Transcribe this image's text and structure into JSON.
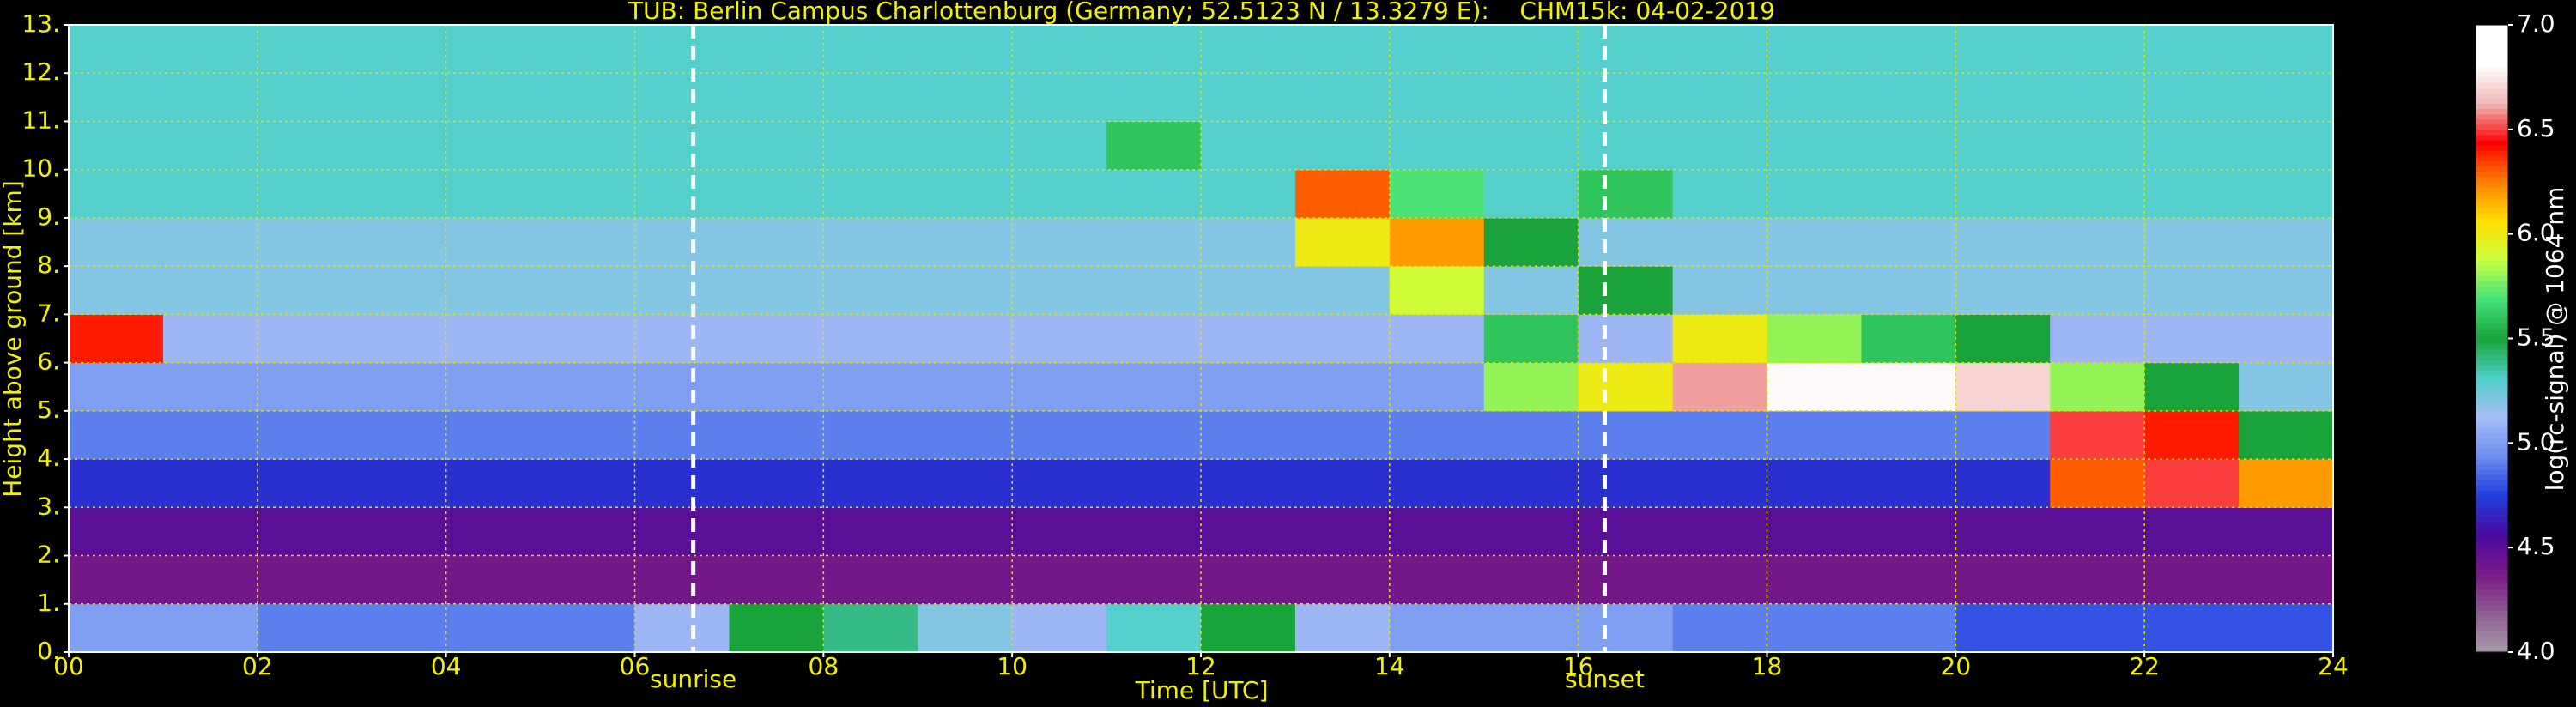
{
  "chart_data": {
    "type": "heatmap",
    "title": "TUB: Berlin Campus Charlottenburg (Germany; 52.5123 N / 13.3279 E):    CHM15k: 04-02-2019",
    "x_label": "Time [UTC]",
    "y_label": "Height above ground [km]",
    "colorbar_label": "log(rc-signal) @ 1064 nm",
    "xlim": [
      0,
      24
    ],
    "ylim": [
      0,
      13
    ],
    "zlim": [
      4,
      7
    ],
    "xticks": [
      {
        "value": 0,
        "label": "00"
      },
      {
        "value": 2,
        "label": "02"
      },
      {
        "value": 4,
        "label": "04"
      },
      {
        "value": 6,
        "label": "06"
      },
      {
        "value": 8,
        "label": "08"
      },
      {
        "value": 10,
        "label": "10"
      },
      {
        "value": 12,
        "label": "12"
      },
      {
        "value": 14,
        "label": "14"
      },
      {
        "value": 16,
        "label": "16"
      },
      {
        "value": 18,
        "label": "18"
      },
      {
        "value": 20,
        "label": "20"
      },
      {
        "value": 22,
        "label": "22"
      },
      {
        "value": 24,
        "label": "24"
      }
    ],
    "yticks": [
      {
        "value": 0,
        "label": "0."
      },
      {
        "value": 1,
        "label": "1."
      },
      {
        "value": 2,
        "label": "2."
      },
      {
        "value": 3,
        "label": "3."
      },
      {
        "value": 4,
        "label": "4."
      },
      {
        "value": 5,
        "label": "5."
      },
      {
        "value": 6,
        "label": "6."
      },
      {
        "value": 7,
        "label": "7."
      },
      {
        "value": 8,
        "label": "8."
      },
      {
        "value": 9,
        "label": "9."
      },
      {
        "value": 10,
        "label": "10."
      },
      {
        "value": 11,
        "label": "11."
      },
      {
        "value": 12,
        "label": "12."
      },
      {
        "value": 13,
        "label": "13."
      }
    ],
    "zticks": [
      {
        "value": 4,
        "label": "4.0"
      },
      {
        "value": 4.5,
        "label": "4.5"
      },
      {
        "value": 5,
        "label": "5.0"
      },
      {
        "value": 5.5,
        "label": "5.5"
      },
      {
        "value": 6,
        "label": "6.0"
      },
      {
        "value": 6.5,
        "label": "6.5"
      },
      {
        "value": 7,
        "label": "7.0"
      }
    ],
    "grid": true,
    "colormap": [
      "#a89aa8",
      "#8e5d93",
      "#7a1a86",
      "#4a0aa0",
      "#1f3ee0",
      "#6d8ef0",
      "#a6bdf5",
      "#4fd0c8",
      "#1aa33a",
      "#44e07a",
      "#c8ff40",
      "#ffe000",
      "#ff8000",
      "#ff0000",
      "#f0b8b8",
      "#ffffff",
      "#ffffff"
    ],
    "x_edges": [
      0,
      1,
      2,
      3,
      4,
      5,
      6,
      7,
      8,
      9,
      10,
      11,
      12,
      13,
      14,
      15,
      16,
      17,
      18,
      19,
      20,
      21,
      22,
      23,
      24
    ],
    "y_edges": [
      0,
      1,
      2,
      3,
      4,
      5,
      6,
      7,
      8,
      9,
      10,
      11,
      12,
      13
    ],
    "z": [
      [
        5.0,
        5.0,
        4.9,
        4.9,
        4.9,
        4.9,
        5.1,
        5.5,
        5.4,
        5.2,
        5.1,
        5.3,
        5.5,
        5.1,
        5.0,
        5.0,
        5.0,
        4.9,
        4.9,
        4.9,
        4.8,
        4.8,
        4.8,
        4.8
      ],
      [
        4.4,
        4.4,
        4.4,
        4.4,
        4.4,
        4.4,
        4.4,
        4.4,
        4.4,
        4.4,
        4.4,
        4.4,
        4.4,
        4.4,
        4.4,
        4.4,
        4.4,
        4.4,
        4.4,
        4.4,
        4.4,
        4.4,
        4.4,
        4.4
      ],
      [
        4.5,
        4.5,
        4.5,
        4.5,
        4.5,
        4.5,
        4.5,
        4.5,
        4.5,
        4.5,
        4.5,
        4.5,
        4.5,
        4.5,
        4.5,
        4.5,
        4.5,
        4.5,
        4.5,
        4.5,
        4.5,
        4.5,
        4.5,
        4.5
      ],
      [
        4.7,
        4.7,
        4.7,
        4.7,
        4.7,
        4.7,
        4.7,
        4.7,
        4.7,
        4.7,
        4.7,
        4.7,
        4.7,
        4.7,
        4.7,
        4.7,
        4.7,
        4.7,
        4.7,
        4.7,
        4.7,
        6.3,
        6.5,
        6.2
      ],
      [
        4.9,
        4.9,
        4.9,
        4.9,
        4.9,
        4.9,
        4.9,
        4.9,
        4.9,
        4.9,
        4.9,
        4.9,
        4.9,
        4.9,
        4.9,
        4.9,
        4.9,
        4.9,
        4.9,
        4.9,
        4.9,
        6.5,
        6.4,
        5.5
      ],
      [
        5.0,
        5.0,
        5.0,
        5.0,
        5.0,
        5.0,
        5.0,
        5.0,
        5.0,
        5.0,
        5.0,
        5.0,
        5.0,
        5.0,
        5.0,
        5.8,
        6.0,
        6.6,
        6.8,
        6.8,
        6.7,
        5.8,
        5.5,
        5.2
      ],
      [
        6.4,
        5.1,
        5.1,
        5.1,
        5.1,
        5.1,
        5.1,
        5.1,
        5.1,
        5.1,
        5.1,
        5.1,
        5.1,
        5.1,
        5.1,
        5.6,
        5.1,
        6.0,
        5.8,
        5.6,
        5.5,
        5.1,
        5.1,
        5.1
      ],
      [
        5.2,
        5.2,
        5.2,
        5.2,
        5.2,
        5.2,
        5.2,
        5.2,
        5.2,
        5.2,
        5.2,
        5.2,
        5.2,
        5.2,
        5.9,
        5.2,
        5.5,
        5.2,
        5.2,
        5.2,
        5.2,
        5.2,
        5.2,
        5.2
      ],
      [
        5.2,
        5.2,
        5.2,
        5.2,
        5.2,
        5.2,
        5.2,
        5.2,
        5.2,
        5.2,
        5.2,
        5.2,
        5.2,
        6.0,
        6.2,
        5.5,
        5.2,
        5.2,
        5.2,
        5.2,
        5.2,
        5.2,
        5.2,
        5.2
      ],
      [
        5.3,
        5.3,
        5.3,
        5.3,
        5.3,
        5.3,
        5.3,
        5.3,
        5.3,
        5.3,
        5.3,
        5.3,
        5.3,
        6.3,
        5.7,
        5.3,
        5.6,
        5.3,
        5.3,
        5.3,
        5.3,
        5.3,
        5.3,
        5.3
      ],
      [
        5.3,
        5.3,
        5.3,
        5.3,
        5.3,
        5.3,
        5.3,
        5.3,
        5.3,
        5.3,
        5.3,
        5.6,
        5.3,
        5.3,
        5.3,
        5.3,
        5.3,
        5.3,
        5.3,
        5.3,
        5.3,
        5.3,
        5.3,
        5.3
      ],
      [
        5.3,
        5.3,
        5.3,
        5.3,
        5.3,
        5.3,
        5.3,
        5.3,
        5.3,
        5.3,
        5.3,
        5.3,
        5.3,
        5.3,
        5.3,
        5.3,
        5.3,
        5.3,
        5.3,
        5.3,
        5.3,
        5.3,
        5.3,
        5.3
      ],
      [
        5.3,
        5.3,
        5.3,
        5.3,
        5.3,
        5.3,
        5.3,
        5.3,
        5.3,
        5.3,
        5.3,
        5.3,
        5.3,
        5.3,
        5.3,
        5.3,
        5.3,
        5.3,
        5.3,
        5.3,
        5.3,
        5.3,
        5.3,
        5.3
      ]
    ],
    "annotations": [
      {
        "text": "sunrise",
        "x": 6.62
      },
      {
        "text": "sunset",
        "x": 16.28
      }
    ]
  }
}
